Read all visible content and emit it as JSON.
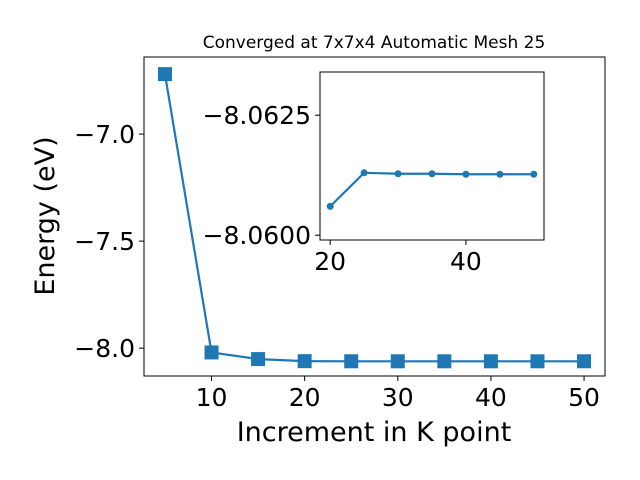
{
  "chart_data": [
    {
      "type": "line",
      "title": "Converged at 7x7x4 Automatic Mesh 25",
      "xlabel": "Increment in K point",
      "ylabel": "Energy (eV)",
      "xlim": [
        2.75,
        52.25
      ],
      "ylim": [
        -8.13,
        -6.64
      ],
      "xticks": [
        10,
        20,
        30,
        40,
        50
      ],
      "xtick_labels": [
        "10",
        "20",
        "30",
        "40",
        "50"
      ],
      "yticks": [
        -7.0,
        -7.5,
        -8.0
      ],
      "ytick_labels": [
        "−7.0",
        "−7.5",
        "−8.0"
      ],
      "grid": false,
      "marker": "square",
      "color": "#1f77b4",
      "series": [
        {
          "x": [
            5,
            10,
            15,
            20,
            25,
            30,
            35,
            40,
            45,
            50
          ],
          "y": [
            -6.72,
            -8.02,
            -8.051,
            -8.0606,
            -8.0613,
            -8.0613,
            -8.0613,
            -8.0613,
            -8.0613,
            -8.0613
          ]
        }
      ]
    },
    {
      "type": "line",
      "title": "",
      "xlabel": "",
      "ylabel": "",
      "xlim": [
        18.5,
        51.5
      ],
      "ylim": [
        -8.0599,
        -8.0634
      ],
      "xticks": [
        20,
        40
      ],
      "xtick_labels": [
        "20",
        "40"
      ],
      "yticks": [
        -8.0625,
        -8.06
      ],
      "ytick_labels": [
        "−8.0625",
        "−8.0600"
      ],
      "grid": false,
      "marker": "circle",
      "color": "#1f77b4",
      "series": [
        {
          "x": [
            20,
            25,
            30,
            35,
            40,
            45,
            50
          ],
          "y": [
            -8.0606,
            -8.0613,
            -8.06128,
            -8.06128,
            -8.06127,
            -8.06127,
            -8.06127
          ]
        }
      ]
    }
  ]
}
